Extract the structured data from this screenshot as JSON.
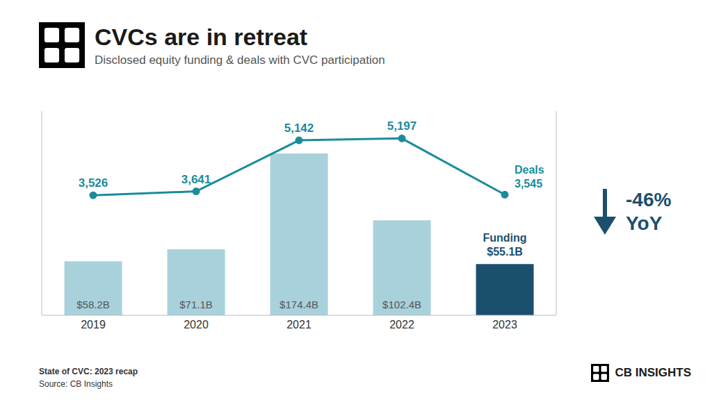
{
  "chart_data": {
    "type": "bar",
    "title": "CVCs are in retreat",
    "subtitle": "Disclosed equity funding & deals with CVC participation",
    "categories": [
      "2019",
      "2020",
      "2021",
      "2022",
      "2023"
    ],
    "series": [
      {
        "name": "Funding",
        "type": "bar",
        "colors": [
          "#a8d1dc",
          "#a8d1dc",
          "#a8d1dc",
          "#a8d1dc",
          "#1b4f6e"
        ],
        "values": [
          58.2,
          71.1,
          174.4,
          102.4,
          55.1
        ],
        "value_labels": [
          "$58.2B",
          "$71.1B",
          "$174.4B",
          "$102.4B",
          null
        ]
      },
      {
        "name": "Deals",
        "type": "line",
        "axis": "y2",
        "color": "#1a8c9c",
        "values": [
          3526,
          3641,
          5142,
          5197,
          3545
        ],
        "value_labels": [
          "3,526",
          "3,641",
          "5,142",
          "5,197",
          null
        ]
      }
    ],
    "ylim": [
      0,
      220
    ],
    "yticks": [],
    "y2lim": [
      0,
      6000
    ],
    "y2ticks": [],
    "grid": false,
    "data_labels": true,
    "tick_labels": "x",
    "annotations": [
      {
        "text": "Funding\n$55.1B",
        "series": "Funding",
        "category": "2023"
      },
      {
        "text": "Deals\n3,545",
        "series": "Deals",
        "category": "2023"
      },
      {
        "text": "-46%\nYoY"
      },
      {
        "text": "State of CVC: 2023 recap"
      },
      {
        "text": "Source: CB Insights"
      },
      {
        "text": "CB INSIGHTS"
      }
    ]
  }
}
